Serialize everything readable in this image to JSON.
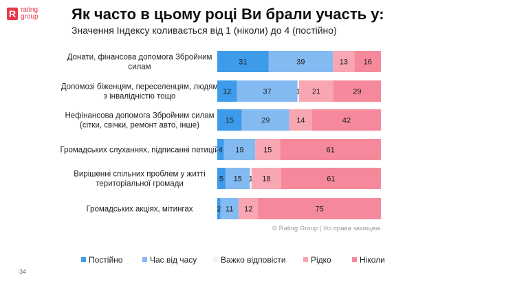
{
  "logo": {
    "mark": "R",
    "line1": "rating",
    "line2": "group"
  },
  "header": {
    "title": "Як часто в цьому році Ви брали участь у:",
    "subtitle": "Значення Індексу коливається від 1 (ніколи) до 4 (постійно)"
  },
  "chart_data": {
    "type": "bar",
    "orientation": "horizontal",
    "stacked": true,
    "categories": [
      [
        "Донати, фінансова допомога Збройним",
        "силам"
      ],
      [
        "Допомозі біженцям, переселенцям, людям",
        "з інвалідністю тощо"
      ],
      [
        "Нефінансова допомога Збройним силам",
        "(сітки, свічки, ремонт авто, інше)"
      ],
      [
        "Громадських слуханнях, підписанні петицій"
      ],
      [
        "Вирішенні спільних проблем у житті",
        "територіальної громади"
      ],
      [
        "Громадських акціях, мітингах"
      ]
    ],
    "series": [
      {
        "name": "Постійно",
        "color": "#3d9be9",
        "values": [
          31,
          12,
          15,
          4,
          5,
          2
        ]
      },
      {
        "name": "Час від часу",
        "color": "#83baf2",
        "values": [
          39,
          37,
          29,
          19,
          15,
          11
        ]
      },
      {
        "name": "Важко відповісти",
        "color": "#f2f2f2",
        "values": [
          0,
          1,
          0,
          0,
          1,
          0
        ]
      },
      {
        "name": "Рідко",
        "color": "#f8a6b2",
        "values": [
          13,
          21,
          14,
          15,
          18,
          12
        ]
      },
      {
        "name": "Ніколи",
        "color": "#f5899b",
        "values": [
          16,
          29,
          42,
          61,
          61,
          75
        ]
      }
    ],
    "labels": [
      [
        "31",
        "39",
        "",
        "13",
        "16"
      ],
      [
        "12",
        "37",
        "1",
        "21",
        "29"
      ],
      [
        "15",
        "29",
        "",
        "14",
        "42"
      ],
      [
        "4",
        "19",
        "",
        "15",
        "61"
      ],
      [
        "5",
        "15",
        "1",
        "18",
        "61"
      ],
      [
        "2",
        "11",
        "",
        "12",
        "75"
      ]
    ],
    "xlim": [
      0,
      100
    ],
    "legend_position": "bottom"
  },
  "copyright": "© Rating Group | Усі права захищені",
  "page_number": "34"
}
